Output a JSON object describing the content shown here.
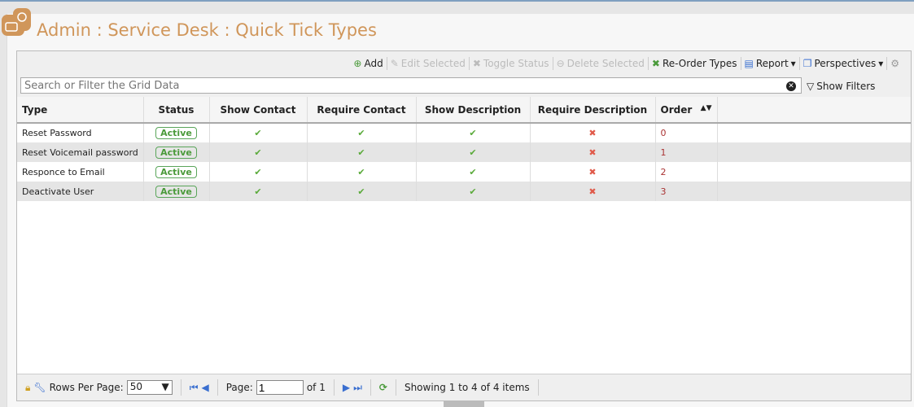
{
  "header": {
    "title": "Admin : Service Desk : Quick Tick Types"
  },
  "toolbar": {
    "add": "Add",
    "edit": "Edit Selected",
    "toggle": "Toggle Status",
    "delete": "Delete Selected",
    "reorder": "Re-Order Types",
    "report": "Report",
    "perspectives": "Perspectives"
  },
  "search": {
    "placeholder": "Search or Filter the Grid Data",
    "show_filters": "Show Filters"
  },
  "grid": {
    "columns": [
      "Type",
      "Status",
      "Show Contact",
      "Require Contact",
      "Show Description",
      "Require Description",
      "Order"
    ],
    "rows": [
      {
        "type": "Reset Password",
        "status": "Active",
        "show_contact": "✔",
        "require_contact": "✔",
        "show_description": "✔",
        "require_description": "✖",
        "order": "0"
      },
      {
        "type": "Reset Voicemail password",
        "status": "Active",
        "show_contact": "✔",
        "require_contact": "✔",
        "show_description": "✔",
        "require_description": "✖",
        "order": "1"
      },
      {
        "type": "Responce to Email",
        "status": "Active",
        "show_contact": "✔",
        "require_contact": "✔",
        "show_description": "✔",
        "require_description": "✖",
        "order": "2"
      },
      {
        "type": "Deactivate User",
        "status": "Active",
        "show_contact": "✔",
        "require_contact": "✔",
        "show_description": "✔",
        "require_description": "✖",
        "order": "3"
      }
    ]
  },
  "footer": {
    "rows_per_page_label": "Rows Per Page:",
    "rows_per_page": "50",
    "page_label": "Page:",
    "page": "1",
    "of": "of 1",
    "showing": "Showing 1 to 4 of 4 items"
  },
  "colors": {
    "title": "#d0965a",
    "active": "#4a9a3a",
    "cross": "#e05a4a"
  }
}
